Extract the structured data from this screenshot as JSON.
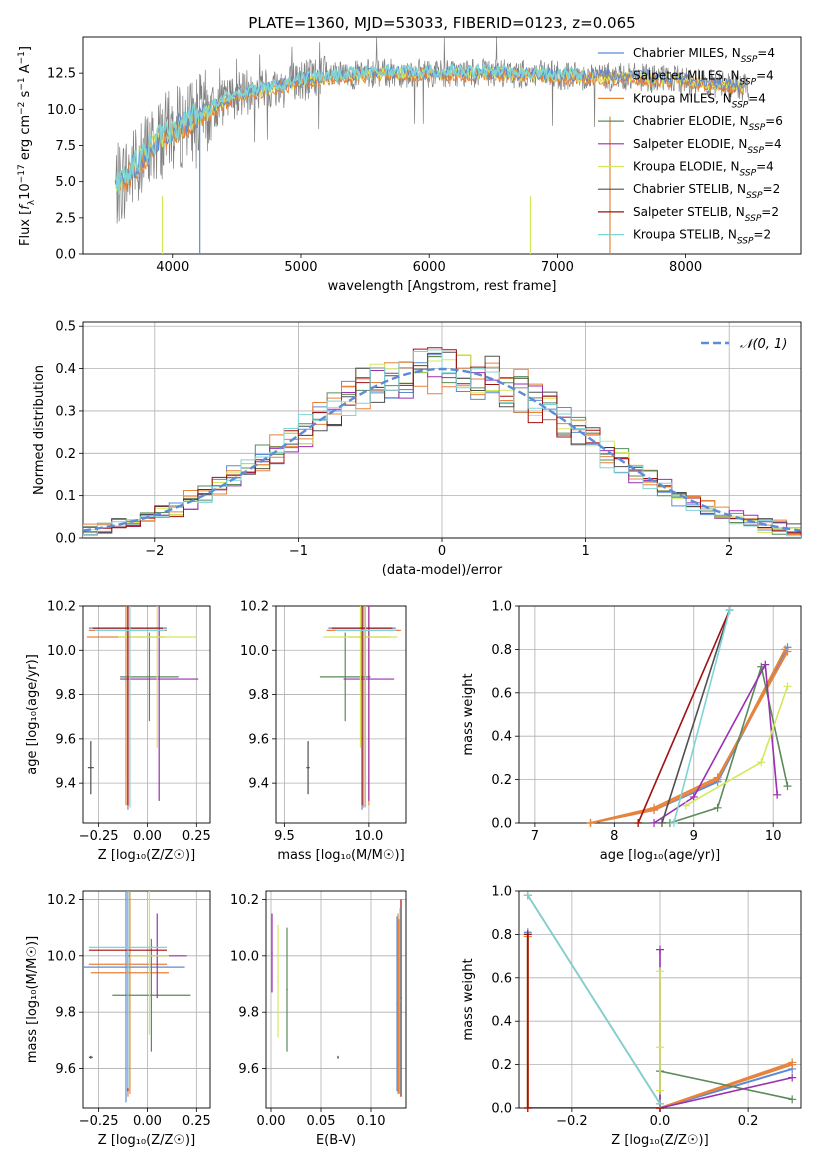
{
  "title": "PLATE=1360, MJD=53033, FIBERID=0123, z=0.065",
  "colors": {
    "grid": "#b0b0b0",
    "normal_line": "#5b8bd9",
    "models": [
      "#5b8bd9",
      "#e8833a",
      "#e8833a",
      "#5a8a5a",
      "#9a2fb0",
      "#d4e85a",
      "#505050",
      "#a01010",
      "#7fd4d4"
    ]
  },
  "chart_data": [
    {
      "type": "line",
      "id": "spectrum",
      "title": "PLATE=1360, MJD=53033, FIBERID=0123, z=0.065",
      "xlabel": "wavelength [Angstrom, rest frame]",
      "ylabel_parts": [
        "Flux [",
        "f",
        "λ",
        "10",
        "−17",
        " erg cm",
        "−2",
        " s",
        "−1",
        " A",
        "−1",
        "]"
      ],
      "xlim": [
        3300,
        8900
      ],
      "ylim": [
        0,
        15
      ],
      "xticks": [
        "4000",
        "5000",
        "6000",
        "7000",
        "8000"
      ],
      "yticks": [
        "0.0",
        "2.5",
        "5.0",
        "7.5",
        "10.0",
        "12.5"
      ],
      "legend_position": "upper right",
      "data_envelope": {
        "x": [
          3550,
          3700,
          3900,
          4100,
          4300,
          4500,
          4800,
          5000,
          5300,
          5600,
          6000,
          6400,
          6800,
          7200,
          7600,
          8000,
          8500
        ],
        "y": [
          4.5,
          6.0,
          8.0,
          9.0,
          10.0,
          11.0,
          11.5,
          12.0,
          12.3,
          12.5,
          12.5,
          12.5,
          12.4,
          12.3,
          12.2,
          12.0,
          11.5
        ]
      },
      "legend": [
        {
          "name": "Chabrier MILES",
          "n_ssp": "4"
        },
        {
          "name": "Salpeter MILES",
          "n_ssp": "4"
        },
        {
          "name": "Kroupa MILES",
          "n_ssp": "4"
        },
        {
          "name": "Chabrier ELODIE",
          "n_ssp": "6"
        },
        {
          "name": "Salpeter ELODIE",
          "n_ssp": "4"
        },
        {
          "name": "Kroupa ELODIE",
          "n_ssp": "4"
        },
        {
          "name": "Chabrier STELIB",
          "n_ssp": "2"
        },
        {
          "name": "Salpeter STELIB",
          "n_ssp": "2"
        },
        {
          "name": "Kroupa STELIB",
          "n_ssp": "2"
        }
      ]
    },
    {
      "type": "bar",
      "id": "residuals",
      "xlabel": "(data-model)/error",
      "ylabel": "Normed distribution",
      "xlim": [
        -2.5,
        2.5
      ],
      "ylim": [
        0,
        0.51
      ],
      "xticks": [
        "−2",
        "−1",
        "0",
        "1",
        "2"
      ],
      "yticks": [
        "0.0",
        "0.1",
        "0.2",
        "0.3",
        "0.4",
        "0.5"
      ],
      "legend": [
        "𝒩(0, 1)"
      ],
      "legend_position": "upper right",
      "bin_width": 0.1,
      "series_offsets": [
        0.012,
        -0.008,
        0.015,
        0.006,
        -0.012,
        0.0,
        0.009,
        -0.004,
        0.018
      ]
    },
    {
      "type": "scatter",
      "id": "age_vs_Z",
      "xlabel": "Z [log₁₀(Z/Z☉)]",
      "ylabel": "age  [log₁₀(age/yr)]",
      "xlim": [
        -0.33,
        0.32
      ],
      "ylim": [
        9.22,
        10.2
      ],
      "xticks": [
        "−0.25",
        "0.00",
        "0.25"
      ],
      "yticks": [
        "9.4",
        "9.6",
        "9.8",
        "10.0",
        "10.2"
      ],
      "points": [
        {
          "series": 0,
          "x": -0.1,
          "y": 10.1,
          "xerr": 0.2,
          "yerr": 0.82
        },
        {
          "series": 1,
          "x": -0.1,
          "y": 10.09,
          "xerr": 0.2,
          "yerr": 0.8
        },
        {
          "series": 2,
          "x": -0.11,
          "y": 10.06,
          "xerr": 0.2,
          "yerr": 0.76
        },
        {
          "series": 3,
          "x": 0.01,
          "y": 9.88,
          "xerr": 0.15,
          "yerr": 0.2
        },
        {
          "series": 4,
          "x": 0.06,
          "y": 9.87,
          "xerr": 0.2,
          "yerr": 0.55
        },
        {
          "series": 5,
          "x": 0.05,
          "y": 10.06,
          "xerr": 0.2,
          "yerr": 0.5
        },
        {
          "series": 6,
          "x": -0.29,
          "y": 9.47,
          "xerr": 0.015,
          "yerr": 0.12
        },
        {
          "series": 7,
          "x": -0.1,
          "y": 10.1,
          "xerr": 0.18,
          "yerr": 0.8
        },
        {
          "series": 8,
          "x": -0.09,
          "y": 10.09,
          "xerr": 0.18,
          "yerr": 0.8
        }
      ]
    },
    {
      "type": "scatter",
      "id": "age_vs_mass",
      "xlabel": "mass [log₁₀(M/M☉)]",
      "ylabel": "",
      "xlim": [
        9.45,
        10.22
      ],
      "ylim": [
        9.22,
        10.2
      ],
      "xticks": [
        "9.5",
        "10.0"
      ],
      "yticks": [
        "9.4",
        "9.6",
        "9.8",
        "10.0",
        "10.2"
      ],
      "points": [
        {
          "series": 0,
          "x": 9.96,
          "y": 10.1,
          "xerr": 0.2,
          "yerr": 0.82
        },
        {
          "series": 1,
          "x": 9.97,
          "y": 10.09,
          "xerr": 0.22,
          "yerr": 0.8
        },
        {
          "series": 2,
          "x": 10.0,
          "y": 10.06,
          "xerr": 0.12,
          "yerr": 0.76
        },
        {
          "series": 3,
          "x": 9.86,
          "y": 9.88,
          "xerr": 0.15,
          "yerr": 0.2
        },
        {
          "series": 4,
          "x": 10.0,
          "y": 9.87,
          "xerr": 0.15,
          "yerr": 0.55
        },
        {
          "series": 5,
          "x": 9.95,
          "y": 10.06,
          "xerr": 0.22,
          "yerr": 0.5
        },
        {
          "series": 6,
          "x": 9.64,
          "y": 9.47,
          "xerr": 0.01,
          "yerr": 0.12
        },
        {
          "series": 7,
          "x": 9.96,
          "y": 10.1,
          "xerr": 0.18,
          "yerr": 0.8
        },
        {
          "series": 8,
          "x": 9.98,
          "y": 10.09,
          "xerr": 0.18,
          "yerr": 0.8
        }
      ]
    },
    {
      "type": "line",
      "id": "weight_vs_age",
      "xlabel": "age  [log₁₀(age/yr)]",
      "ylabel": "mass weight",
      "xlim": [
        6.8,
        10.35
      ],
      "ylim": [
        0,
        1
      ],
      "xticks": [
        "7",
        "8",
        "9",
        "10"
      ],
      "yticks": [
        "0.0",
        "0.2",
        "0.4",
        "0.6",
        "0.8",
        "1.0"
      ],
      "series": [
        {
          "x": [
            7.7,
            8.5,
            9.3,
            10.18
          ],
          "y": [
            0.0,
            0.06,
            0.19,
            0.81
          ]
        },
        {
          "x": [
            7.7,
            8.5,
            9.3,
            10.18
          ],
          "y": [
            0.0,
            0.07,
            0.21,
            0.79
          ]
        },
        {
          "x": [
            7.7,
            8.5,
            9.3,
            10.15
          ],
          "y": [
            0.0,
            0.06,
            0.2,
            0.8
          ]
        },
        {
          "x": [
            8.3,
            8.7,
            9.3,
            9.85,
            10.18
          ],
          "y": [
            0.0,
            0.0,
            0.07,
            0.72,
            0.17
          ]
        },
        {
          "x": [
            8.5,
            9.0,
            9.9,
            10.05
          ],
          "y": [
            0.0,
            0.12,
            0.73,
            0.13
          ]
        },
        {
          "x": [
            8.9,
            9.85,
            10.18
          ],
          "y": [
            0.08,
            0.28,
            0.63
          ]
        },
        {
          "x": [
            8.6,
            9.45
          ],
          "y": [
            0.0,
            0.98
          ]
        },
        {
          "x": [
            8.3,
            9.45
          ],
          "y": [
            0.0,
            0.98
          ]
        },
        {
          "x": [
            8.75,
            9.45
          ],
          "y": [
            0.0,
            0.98
          ]
        }
      ]
    },
    {
      "type": "scatter",
      "id": "mass_vs_Z",
      "xlabel": "Z [log₁₀(Z/Z☉)]",
      "ylabel": "mass [log₁₀(M/M☉)]",
      "xlim": [
        -0.33,
        0.32
      ],
      "ylim": [
        9.46,
        10.23
      ],
      "xticks": [
        "−0.25",
        "0.00",
        "0.25"
      ],
      "yticks": [
        "9.6",
        "9.8",
        "10.0",
        "10.2"
      ],
      "points": [
        {
          "series": 0,
          "x": -0.11,
          "y": 9.96,
          "xerr": 0.3,
          "yerr": 0.48
        },
        {
          "series": 1,
          "x": -0.1,
          "y": 9.97,
          "xerr": 0.2,
          "yerr": 0.47
        },
        {
          "series": 2,
          "x": -0.09,
          "y": 9.94,
          "xerr": 0.2,
          "yerr": 0.43
        },
        {
          "series": 3,
          "x": 0.02,
          "y": 9.86,
          "xerr": 0.2,
          "yerr": 0.2
        },
        {
          "series": 4,
          "x": 0.05,
          "y": 10.0,
          "xerr": 0.15,
          "yerr": 0.15
        },
        {
          "series": 5,
          "x": 0.01,
          "y": 10.0,
          "xerr": 0.1,
          "yerr": 0.28
        },
        {
          "series": 6,
          "x": -0.29,
          "y": 9.64,
          "xerr": 0.01,
          "yerr": 0.005
        },
        {
          "series": 7,
          "x": -0.1,
          "y": 10.02,
          "xerr": 0.2,
          "yerr": 0.5
        },
        {
          "series": 8,
          "x": -0.1,
          "y": 10.03,
          "xerr": 0.2,
          "yerr": 0.5
        }
      ]
    },
    {
      "type": "scatter",
      "id": "mass_vs_EBV",
      "xlabel": "E(B-V)",
      "ylabel": "",
      "xlim": [
        -0.005,
        0.135
      ],
      "ylim": [
        9.46,
        10.23
      ],
      "xticks": [
        "0.00",
        "0.05",
        "0.10"
      ],
      "yticks": [
        "9.6",
        "9.8",
        "10.0",
        "10.2"
      ],
      "points": [
        {
          "series": 0,
          "x": 0.126,
          "y": 9.83,
          "yerr": 0.31
        },
        {
          "series": 1,
          "x": 0.128,
          "y": 9.82,
          "yerr": 0.31
        },
        {
          "series": 2,
          "x": 0.127,
          "y": 9.83,
          "yerr": 0.32
        },
        {
          "series": 3,
          "x": 0.016,
          "y": 9.88,
          "yerr": 0.22
        },
        {
          "series": 4,
          "x": 0.001,
          "y": 10.01,
          "yerr": 0.14
        },
        {
          "series": 5,
          "x": 0.007,
          "y": 9.91,
          "yerr": 0.2
        },
        {
          "series": 6,
          "x": 0.067,
          "y": 9.64,
          "yerr": 0.005
        },
        {
          "series": 7,
          "x": 0.13,
          "y": 9.85,
          "yerr": 0.35
        },
        {
          "series": 8,
          "x": 0.129,
          "y": 9.84,
          "yerr": 0.33
        }
      ]
    },
    {
      "type": "line",
      "id": "weight_vs_Z",
      "xlabel": "Z [log₁₀(Z/Z☉)]",
      "ylabel": "mass weight",
      "xlim": [
        -0.32,
        0.32
      ],
      "ylim": [
        0,
        1
      ],
      "xticks": [
        "−0.2",
        "0.0",
        "0.2"
      ],
      "yticks": [
        "0.0",
        "0.2",
        "0.4",
        "0.6",
        "0.8",
        "1.0"
      ],
      "series": [
        {
          "x": [
            -0.3,
            -0.3,
            0.0,
            0.3
          ],
          "y": [
            0.81,
            0.0,
            0.0,
            0.18
          ]
        },
        {
          "x": [
            -0.3,
            -0.3,
            0.0,
            0.3
          ],
          "y": [
            0.79,
            0.0,
            0.0,
            0.21
          ]
        },
        {
          "x": [
            -0.3,
            -0.3,
            0.0,
            0.3
          ],
          "y": [
            0.8,
            0.0,
            0.0,
            0.2
          ]
        },
        {
          "x": [
            0.0,
            0.0,
            0.3
          ],
          "y": [
            0.0,
            0.17,
            0.04
          ]
        },
        {
          "x": [
            0.0,
            0.0,
            0.3
          ],
          "y": [
            0.73,
            0.0,
            0.14
          ]
        },
        {
          "x": [
            0.0,
            0.0,
            0.0
          ],
          "y": [
            0.63,
            0.28,
            0.08
          ]
        },
        {
          "x": [
            -0.3,
            0.0
          ],
          "y": [
            0.98,
            0.02
          ]
        },
        {
          "x": [
            -0.3,
            -0.3,
            0.0
          ],
          "y": [
            0.8,
            0.0,
            0.0
          ]
        },
        {
          "x": [
            -0.3,
            0.0
          ],
          "y": [
            0.98,
            0.02
          ]
        }
      ]
    }
  ]
}
